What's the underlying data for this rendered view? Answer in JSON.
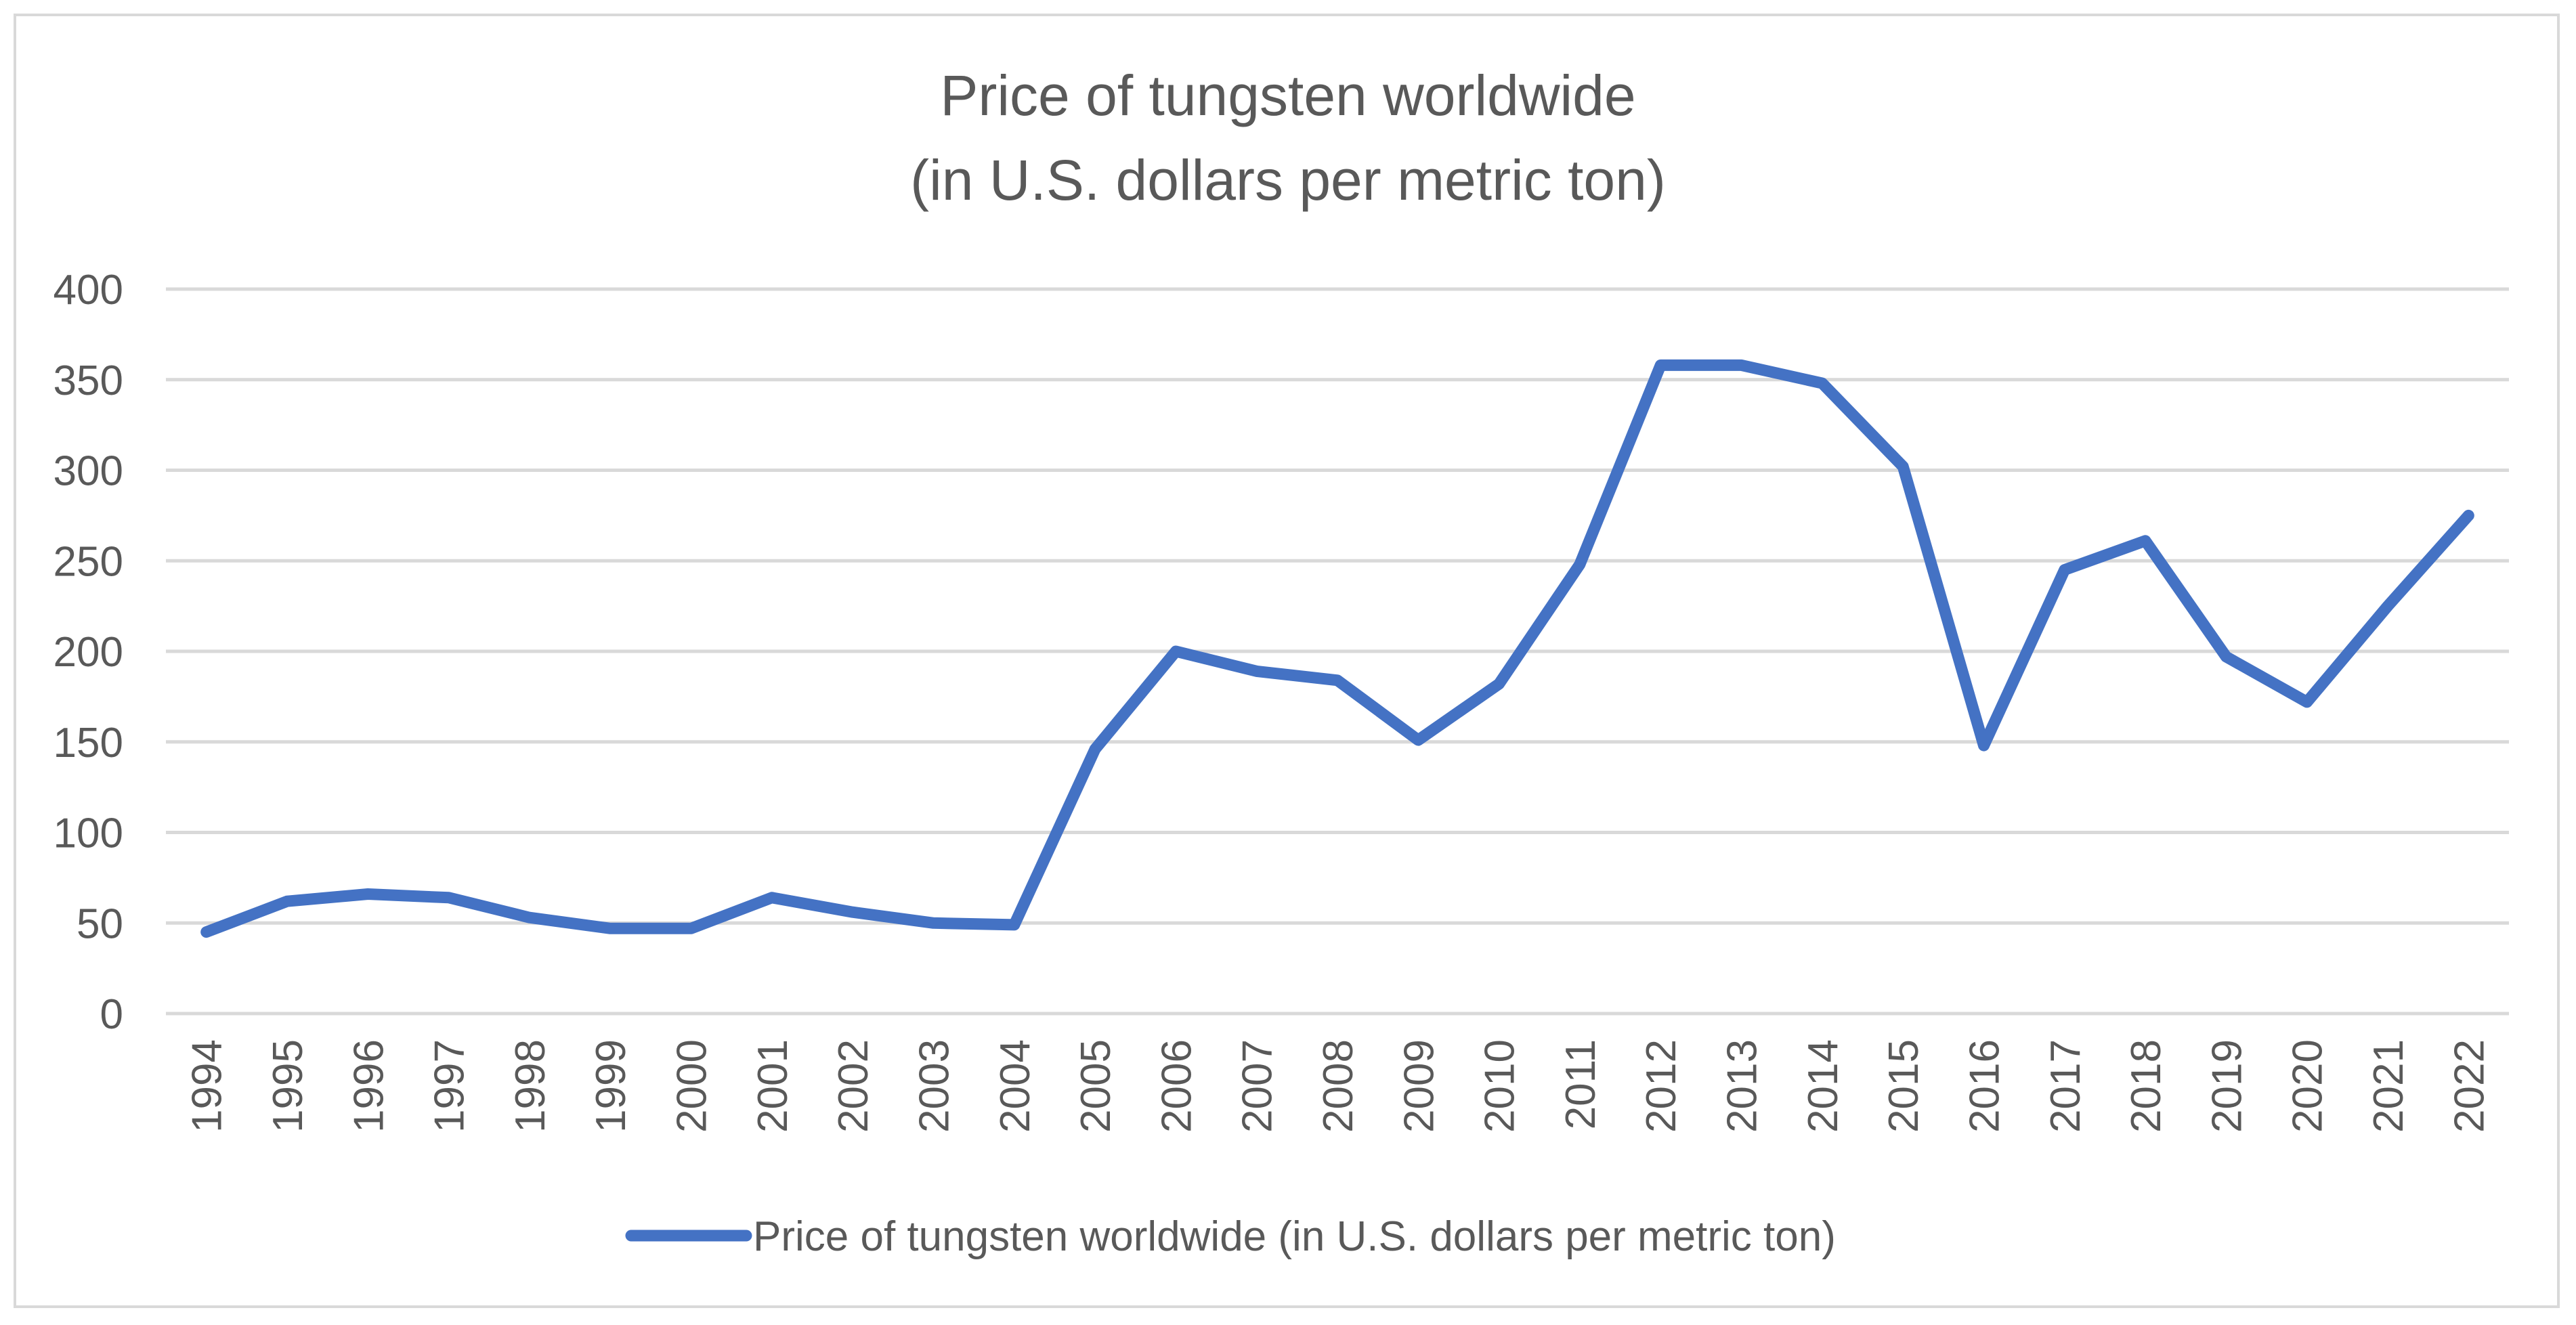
{
  "chart_data": {
    "type": "line",
    "title": [
      "Price of tungsten worldwide",
      "(in U.S. dollars per metric ton)"
    ],
    "xlabel": "",
    "ylabel": "",
    "ylim": [
      0,
      400
    ],
    "yticks": [
      0,
      50,
      100,
      150,
      200,
      250,
      300,
      350,
      400
    ],
    "grid": true,
    "legend_position": "bottom",
    "categories": [
      "1994",
      "1995",
      "1996",
      "1997",
      "1998",
      "1999",
      "2000",
      "2001",
      "2002",
      "2003",
      "2004",
      "2005",
      "2006",
      "2007",
      "2008",
      "2009",
      "2010",
      "2011",
      "2012",
      "2013",
      "2014",
      "2015",
      "2016",
      "2017",
      "2018",
      "2019",
      "2020",
      "2021",
      "2022"
    ],
    "series": [
      {
        "name": "Price of tungsten worldwide (in U.S. dollars per metric ton)",
        "color": "#4472c4",
        "values": [
          45,
          62,
          66,
          64,
          53,
          47,
          47,
          64,
          56,
          50,
          49,
          146,
          200,
          189,
          184,
          151,
          182,
          248,
          358,
          358,
          348,
          302,
          148,
          245,
          261,
          197,
          172,
          225,
          275
        ]
      }
    ]
  }
}
